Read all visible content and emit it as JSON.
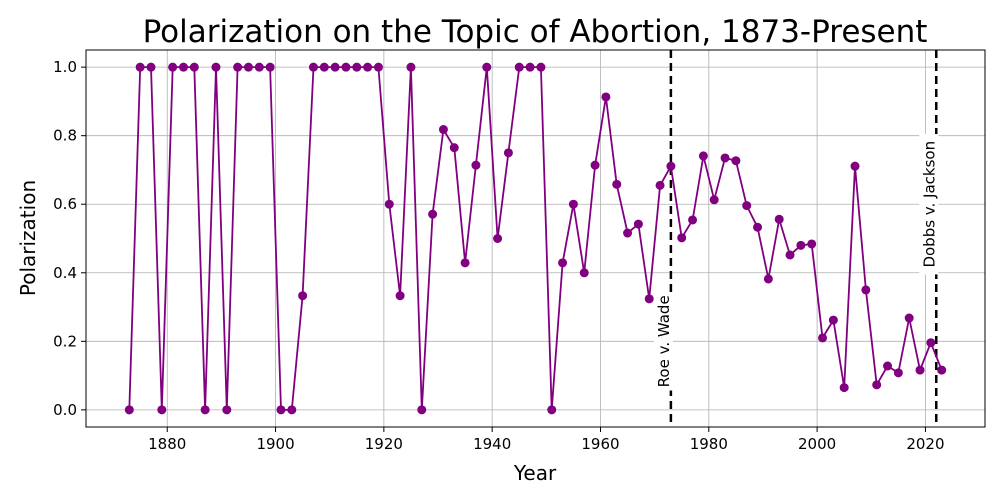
{
  "chart_data": {
    "type": "line",
    "title": "Polarization on the Topic of Abortion, 1873-Present",
    "xlabel": "Year",
    "ylabel": "Polarization",
    "xlim": [
      1865,
      2031
    ],
    "ylim": [
      -0.05,
      1.05
    ],
    "xticks": [
      1880,
      1900,
      1920,
      1940,
      1960,
      1980,
      2000,
      2020
    ],
    "yticks": [
      0.0,
      0.2,
      0.4,
      0.6,
      0.8,
      1.0
    ],
    "grid": true,
    "color": "#800080",
    "marker": "circle",
    "x": [
      1873,
      1875,
      1877,
      1879,
      1881,
      1883,
      1885,
      1887,
      1889,
      1891,
      1893,
      1895,
      1897,
      1899,
      1901,
      1903,
      1905,
      1907,
      1909,
      1911,
      1913,
      1915,
      1917,
      1919,
      1921,
      1923,
      1925,
      1927,
      1929,
      1931,
      1933,
      1935,
      1937,
      1939,
      1941,
      1943,
      1945,
      1947,
      1949,
      1951,
      1953,
      1955,
      1957,
      1959,
      1961,
      1963,
      1965,
      1967,
      1969,
      1971,
      1973,
      1975,
      1977,
      1979,
      1981,
      1983,
      1985,
      1987,
      1989,
      1991,
      1993,
      1995,
      1997,
      1999,
      2001,
      2003,
      2005,
      2007,
      2009,
      2011,
      2013,
      2015,
      2017,
      2019,
      2021,
      2023
    ],
    "y": [
      0.0,
      1.0,
      1.0,
      0.0,
      1.0,
      1.0,
      1.0,
      0.0,
      1.0,
      0.0,
      1.0,
      1.0,
      1.0,
      1.0,
      0.0,
      0.0,
      0.333,
      1.0,
      1.0,
      1.0,
      1.0,
      1.0,
      1.0,
      1.0,
      0.6,
      0.333,
      1.0,
      0.0,
      0.571,
      0.818,
      0.765,
      0.429,
      0.714,
      1.0,
      0.5,
      0.75,
      1.0,
      1.0,
      1.0,
      0.0,
      0.429,
      0.6,
      0.4,
      0.714,
      0.913,
      0.658,
      0.516,
      0.542,
      0.324,
      0.655,
      0.711,
      0.502,
      0.554,
      0.741,
      0.613,
      0.735,
      0.727,
      0.596,
      0.533,
      0.382,
      0.556,
      0.452,
      0.48,
      0.484,
      0.21,
      0.262,
      0.065,
      0.711,
      0.35,
      0.073,
      0.128,
      0.108,
      0.268,
      0.116,
      0.196,
      0.116
    ],
    "events": [
      {
        "year": 1973,
        "label": "Roe v. Wade",
        "label_y": 0.2
      },
      {
        "year": 2022,
        "label": "Dobbs v. Jackson",
        "label_y": 0.6
      }
    ]
  }
}
